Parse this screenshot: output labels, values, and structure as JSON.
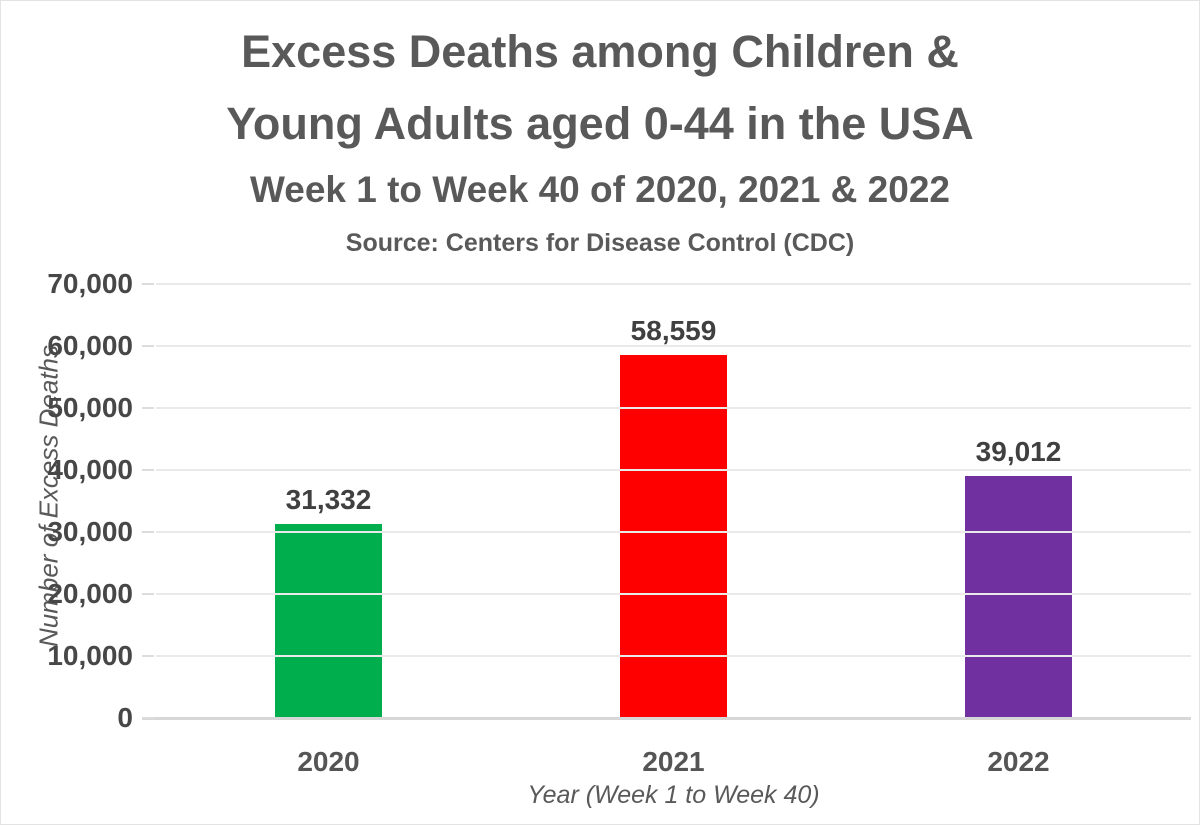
{
  "chart_data": {
    "type": "bar",
    "title_line1": "Excess Deaths among Children &",
    "title_line2": "Young Adults aged 0-44 in the USA",
    "subtitle": "Week 1 to Week 40 of 2020, 2021 & 2022",
    "source": "Source: Centers for Disease Control (CDC)",
    "xlabel": "Year (Week 1 to Week 40)",
    "ylabel": "Number of Excess Deaths",
    "categories": [
      "2020",
      "2021",
      "2022"
    ],
    "values": [
      31332,
      58559,
      39012
    ],
    "value_labels": [
      "31,332",
      "58,559",
      "39,012"
    ],
    "bar_colors": [
      "#00AE4D",
      "#FF0000",
      "#7030A0"
    ],
    "ylim": [
      0,
      70000
    ],
    "ytick_values": [
      0,
      10000,
      20000,
      30000,
      40000,
      50000,
      60000,
      70000
    ],
    "ytick_labels": [
      "0",
      "10,000",
      "20,000",
      "30,000",
      "40,000",
      "50,000",
      "60,000",
      "70,000"
    ],
    "grid": "horizontal",
    "legend": "none"
  },
  "colors": {
    "title_text": "#595959",
    "label_text": "#404040",
    "gridline": "#eaeaea",
    "baseline": "#d7d7d7",
    "background": "#ffffff"
  }
}
